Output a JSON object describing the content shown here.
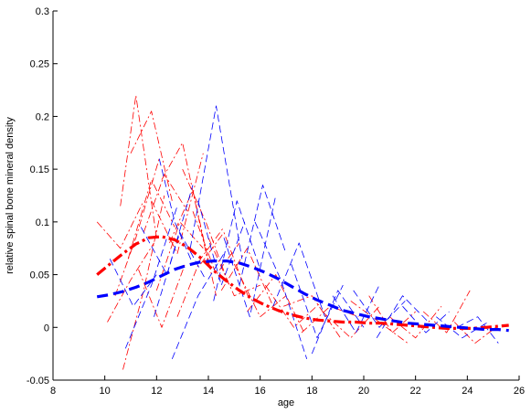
{
  "chart_data": {
    "type": "line",
    "title": "",
    "xlabel": "age",
    "ylabel": "relative spinal bone mineral density",
    "xlim": [
      8,
      26
    ],
    "ylim": [
      -0.05,
      0.3
    ],
    "xticks": [
      8,
      10,
      12,
      14,
      16,
      18,
      20,
      22,
      24,
      26
    ],
    "yticks": [
      -0.05,
      0,
      0.05,
      0.1,
      0.15,
      0.2,
      0.25,
      0.3
    ],
    "xtick_labels": [
      "8",
      "10",
      "12",
      "14",
      "16",
      "18",
      "20",
      "22",
      "24",
      "26"
    ],
    "ytick_labels": [
      "-0.05",
      "0",
      "0.05",
      "0.1",
      "0.15",
      "0.2",
      "0.25",
      "0.3"
    ],
    "grid": false,
    "legend": "none",
    "colors": {
      "female": "#ff0000",
      "male": "#0000ff",
      "axis": "#000000"
    },
    "series": [
      {
        "color": "#ff0000",
        "style": "dashdot",
        "role": "fit",
        "x": [
          9.7,
          10.2,
          10.7,
          11.2,
          11.7,
          12.2,
          12.7,
          13.2,
          13.7,
          14.2,
          14.7,
          15.2,
          15.7,
          16.2,
          16.7,
          17.2,
          17.7,
          18.2,
          18.7,
          19.2,
          19.7,
          20.2,
          20.7,
          21.2,
          21.7,
          22.2,
          22.7,
          23.2,
          23.7,
          24.2,
          24.7,
          25.2,
          25.6
        ],
        "y": [
          0.05,
          0.06,
          0.07,
          0.079,
          0.085,
          0.086,
          0.083,
          0.076,
          0.066,
          0.054,
          0.044,
          0.035,
          0.027,
          0.021,
          0.016,
          0.012,
          0.009,
          0.007,
          0.006,
          0.005,
          0.005,
          0.004,
          0.004,
          0.003,
          0.002,
          0.001,
          0.0,
          -0.001,
          -0.001,
          -0.001,
          0.0,
          0.001,
          0.002
        ]
      },
      {
        "color": "#0000ff",
        "style": "dashed",
        "role": "fit",
        "x": [
          9.7,
          10.2,
          10.7,
          11.2,
          11.7,
          12.2,
          12.7,
          13.2,
          13.7,
          14.2,
          14.7,
          15.2,
          15.7,
          16.2,
          16.7,
          17.2,
          17.7,
          18.2,
          18.7,
          19.2,
          19.7,
          20.2,
          20.7,
          21.2,
          21.7,
          22.2,
          22.7,
          23.2,
          23.7,
          24.2,
          24.7,
          25.2,
          25.6
        ],
        "y": [
          0.029,
          0.031,
          0.034,
          0.038,
          0.043,
          0.049,
          0.055,
          0.059,
          0.062,
          0.063,
          0.063,
          0.061,
          0.057,
          0.052,
          0.046,
          0.039,
          0.032,
          0.026,
          0.021,
          0.016,
          0.013,
          0.01,
          0.008,
          0.006,
          0.004,
          0.003,
          0.002,
          0.001,
          0.0,
          -0.001,
          -0.002,
          -0.002,
          -0.003
        ]
      },
      {
        "color": "#ff0000",
        "style": "dashdot",
        "role": "subject",
        "x": [
          9.7,
          10.6,
          11.5
        ],
        "y": [
          0.1,
          0.075,
          0.12
        ]
      },
      {
        "color": "#ff0000",
        "style": "dashdot",
        "role": "subject",
        "x": [
          10.1,
          11.0,
          11.9
        ],
        "y": [
          0.005,
          0.045,
          0.08
        ]
      },
      {
        "color": "#ff0000",
        "style": "dashdot",
        "role": "subject",
        "x": [
          10.4,
          11.2,
          12.1
        ],
        "y": [
          0.03,
          0.085,
          0.16
        ]
      },
      {
        "color": "#ff0000",
        "style": "dashdot",
        "role": "subject",
        "x": [
          10.6,
          11.2,
          12.0
        ],
        "y": [
          0.115,
          0.22,
          0.085
        ]
      },
      {
        "color": "#ff0000",
        "style": "dashdot",
        "role": "subject",
        "x": [
          10.7,
          11.5,
          12.3
        ],
        "y": [
          -0.04,
          0.035,
          0.125
        ]
      },
      {
        "color": "#ff0000",
        "style": "dashdot",
        "role": "subject",
        "x": [
          10.9,
          11.8,
          12.7
        ],
        "y": [
          0.065,
          0.14,
          0.095
        ]
      },
      {
        "color": "#ff0000",
        "style": "dashdot",
        "role": "subject",
        "x": [
          11.0,
          11.8,
          12.6
        ],
        "y": [
          0.165,
          0.205,
          0.12
        ]
      },
      {
        "color": "#ff0000",
        "style": "dashdot",
        "role": "subject",
        "x": [
          11.3,
          12.2,
          13.1
        ],
        "y": [
          0.055,
          0.0,
          0.06
        ]
      },
      {
        "color": "#ff0000",
        "style": "dashdot",
        "role": "subject",
        "x": [
          11.5,
          12.3,
          13.2
        ],
        "y": [
          0.09,
          0.145,
          0.11
        ]
      },
      {
        "color": "#ff0000",
        "style": "dashdot",
        "role": "subject",
        "x": [
          11.8,
          12.8,
          13.8
        ],
        "y": [
          0.12,
          0.07,
          0.165
        ]
      },
      {
        "color": "#ff0000",
        "style": "dashdot",
        "role": "subject",
        "x": [
          12.0,
          12.9,
          13.8
        ],
        "y": [
          0.035,
          0.1,
          0.075
        ]
      },
      {
        "color": "#ff0000",
        "style": "dashdot",
        "role": "subject",
        "x": [
          12.2,
          13.0,
          14.0
        ],
        "y": [
          0.14,
          0.175,
          0.06
        ]
      },
      {
        "color": "#ff0000",
        "style": "dashdot",
        "role": "subject",
        "x": [
          12.5,
          13.4,
          14.3
        ],
        "y": [
          0.08,
          0.13,
          0.03
        ]
      },
      {
        "color": "#ff0000",
        "style": "dashdot",
        "role": "subject",
        "x": [
          12.8,
          13.7,
          14.6
        ],
        "y": [
          0.01,
          0.065,
          0.095
        ]
      },
      {
        "color": "#ff0000",
        "style": "dashdot",
        "role": "subject",
        "x": [
          13.0,
          13.9,
          14.8
        ],
        "y": [
          0.15,
          0.1,
          0.04
        ]
      },
      {
        "color": "#ff0000",
        "style": "dashdot",
        "role": "subject",
        "x": [
          13.4,
          14.3,
          15.2
        ],
        "y": [
          0.11,
          0.05,
          0.08
        ]
      },
      {
        "color": "#ff0000",
        "style": "dashdot",
        "role": "subject",
        "x": [
          13.7,
          14.6,
          15.6
        ],
        "y": [
          0.06,
          0.09,
          0.025
        ]
      },
      {
        "color": "#ff0000",
        "style": "dashdot",
        "role": "subject",
        "x": [
          14.0,
          15.0,
          16.0
        ],
        "y": [
          0.085,
          0.03,
          0.04
        ]
      },
      {
        "color": "#ff0000",
        "style": "dashdot",
        "role": "subject",
        "x": [
          14.5,
          15.5,
          16.5
        ],
        "y": [
          0.035,
          0.075,
          0.02
        ]
      },
      {
        "color": "#ff0000",
        "style": "dashdot",
        "role": "subject",
        "x": [
          15.0,
          16.0,
          17.0
        ],
        "y": [
          0.06,
          0.01,
          0.03
        ]
      },
      {
        "color": "#ff0000",
        "style": "dashdot",
        "role": "subject",
        "x": [
          15.5,
          16.6,
          17.7
        ],
        "y": [
          0.015,
          0.05,
          -0.005
        ]
      },
      {
        "color": "#ff0000",
        "style": "dashdot",
        "role": "subject",
        "x": [
          16.2,
          17.3,
          18.4
        ],
        "y": [
          0.04,
          0.0,
          0.025
        ]
      },
      {
        "color": "#ff0000",
        "style": "dashdot",
        "role": "subject",
        "x": [
          16.9,
          18.0,
          19.1
        ],
        "y": [
          0.02,
          0.03,
          -0.01
        ]
      },
      {
        "color": "#ff0000",
        "style": "dashdot",
        "role": "subject",
        "x": [
          17.6,
          18.7,
          19.8
        ],
        "y": [
          -0.005,
          0.02,
          0.01
        ]
      },
      {
        "color": "#ff0000",
        "style": "dashdot",
        "role": "subject",
        "x": [
          18.4,
          19.5,
          20.6
        ],
        "y": [
          0.015,
          -0.01,
          0.02
        ]
      },
      {
        "color": "#ff0000",
        "style": "dashdot",
        "role": "subject",
        "x": [
          19.5,
          20.6,
          21.7
        ],
        "y": [
          0.025,
          0.005,
          -0.015
        ]
      },
      {
        "color": "#ff0000",
        "style": "dashdot",
        "role": "subject",
        "x": [
          20.2,
          21.1,
          22.0
        ],
        "y": [
          0.03,
          -0.005,
          0.015
        ]
      },
      {
        "color": "#ff0000",
        "style": "dashdot",
        "role": "subject",
        "x": [
          21.0,
          22.0,
          23.0
        ],
        "y": [
          0.01,
          -0.01,
          0.02
        ]
      },
      {
        "color": "#ff0000",
        "style": "dashdot",
        "role": "subject",
        "x": [
          22.3,
          23.2,
          24.1
        ],
        "y": [
          0.015,
          -0.005,
          0.035
        ]
      },
      {
        "color": "#ff0000",
        "style": "dashdot",
        "role": "subject",
        "x": [
          23.5,
          24.3,
          25.1
        ],
        "y": [
          0.005,
          -0.015,
          0.0
        ]
      },
      {
        "color": "#0000ff",
        "style": "dashed",
        "role": "subject",
        "x": [
          10.2,
          11.1,
          12.0
        ],
        "y": [
          0.065,
          0.02,
          0.05
        ]
      },
      {
        "color": "#0000ff",
        "style": "dashed",
        "role": "subject",
        "x": [
          10.8,
          11.8,
          12.8
        ],
        "y": [
          -0.02,
          0.04,
          0.115
        ]
      },
      {
        "color": "#0000ff",
        "style": "dashed",
        "role": "subject",
        "x": [
          11.4,
          12.4,
          13.4
        ],
        "y": [
          0.095,
          0.05,
          0.135
        ]
      },
      {
        "color": "#0000ff",
        "style": "dashed",
        "role": "subject",
        "x": [
          11.9,
          12.9,
          13.9
        ],
        "y": [
          0.01,
          0.09,
          0.045
        ]
      },
      {
        "color": "#0000ff",
        "style": "dashed",
        "role": "subject",
        "x": [
          12.1,
          12.7,
          13.4
        ],
        "y": [
          0.16,
          0.1,
          0.06
        ]
      },
      {
        "color": "#0000ff",
        "style": "dashed",
        "role": "subject",
        "x": [
          12.6,
          13.6,
          14.6
        ],
        "y": [
          -0.03,
          0.03,
          0.07
        ]
      },
      {
        "color": "#0000ff",
        "style": "dashed",
        "role": "subject",
        "x": [
          13.3,
          14.3,
          15.3
        ],
        "y": [
          0.075,
          0.21,
          0.065
        ]
      },
      {
        "color": "#0000ff",
        "style": "dashed",
        "role": "subject",
        "x": [
          13.6,
          14.5,
          15.4
        ],
        "y": [
          0.12,
          0.04,
          0.1
        ]
      },
      {
        "color": "#0000ff",
        "style": "dashed",
        "role": "subject",
        "x": [
          14.2,
          15.1,
          16.0
        ],
        "y": [
          0.025,
          0.12,
          0.055
        ]
      },
      {
        "color": "#0000ff",
        "style": "dashed",
        "role": "subject",
        "x": [
          14.6,
          15.6,
          16.6
        ],
        "y": [
          0.085,
          0.01,
          0.125
        ]
      },
      {
        "color": "#0000ff",
        "style": "dashed",
        "role": "subject",
        "x": [
          15.2,
          16.1,
          17.0
        ],
        "y": [
          0.04,
          0.135,
          0.07
        ]
      },
      {
        "color": "#0000ff",
        "style": "dashed",
        "role": "subject",
        "x": [
          15.8,
          16.8,
          17.8
        ],
        "y": [
          0.1,
          0.045,
          -0.03
        ]
      },
      {
        "color": "#0000ff",
        "style": "dashed",
        "role": "subject",
        "x": [
          16.5,
          17.5,
          18.5
        ],
        "y": [
          0.02,
          0.08,
          0.01
        ]
      },
      {
        "color": "#0000ff",
        "style": "dashed",
        "role": "subject",
        "x": [
          17.2,
          18.2,
          19.2
        ],
        "y": [
          0.06,
          -0.01,
          0.04
        ]
      },
      {
        "color": "#0000ff",
        "style": "dashed",
        "role": "subject",
        "x": [
          18.0,
          19.0,
          20.0
        ],
        "y": [
          -0.025,
          0.035,
          0.0
        ]
      },
      {
        "color": "#0000ff",
        "style": "dashed",
        "role": "subject",
        "x": [
          18.8,
          19.7,
          20.6
        ],
        "y": [
          0.03,
          -0.005,
          0.04
        ]
      },
      {
        "color": "#0000ff",
        "style": "dashed",
        "role": "subject",
        "x": [
          19.6,
          20.6,
          21.6
        ],
        "y": [
          0.035,
          0.0,
          0.025
        ]
      },
      {
        "color": "#0000ff",
        "style": "dashed",
        "role": "subject",
        "x": [
          20.5,
          21.5,
          22.5
        ],
        "y": [
          -0.01,
          0.03,
          0.005
        ]
      },
      {
        "color": "#0000ff",
        "style": "dashed",
        "role": "subject",
        "x": [
          21.5,
          22.4,
          23.3
        ],
        "y": [
          0.02,
          -0.005,
          0.015
        ]
      },
      {
        "color": "#0000ff",
        "style": "dashed",
        "role": "subject",
        "x": [
          22.8,
          23.8,
          24.8
        ],
        "y": [
          0.01,
          -0.01,
          0.005
        ]
      },
      {
        "color": "#0000ff",
        "style": "dashed",
        "role": "subject",
        "x": [
          23.6,
          24.4,
          25.2
        ],
        "y": [
          0.0,
          0.01,
          -0.015
        ]
      }
    ]
  }
}
